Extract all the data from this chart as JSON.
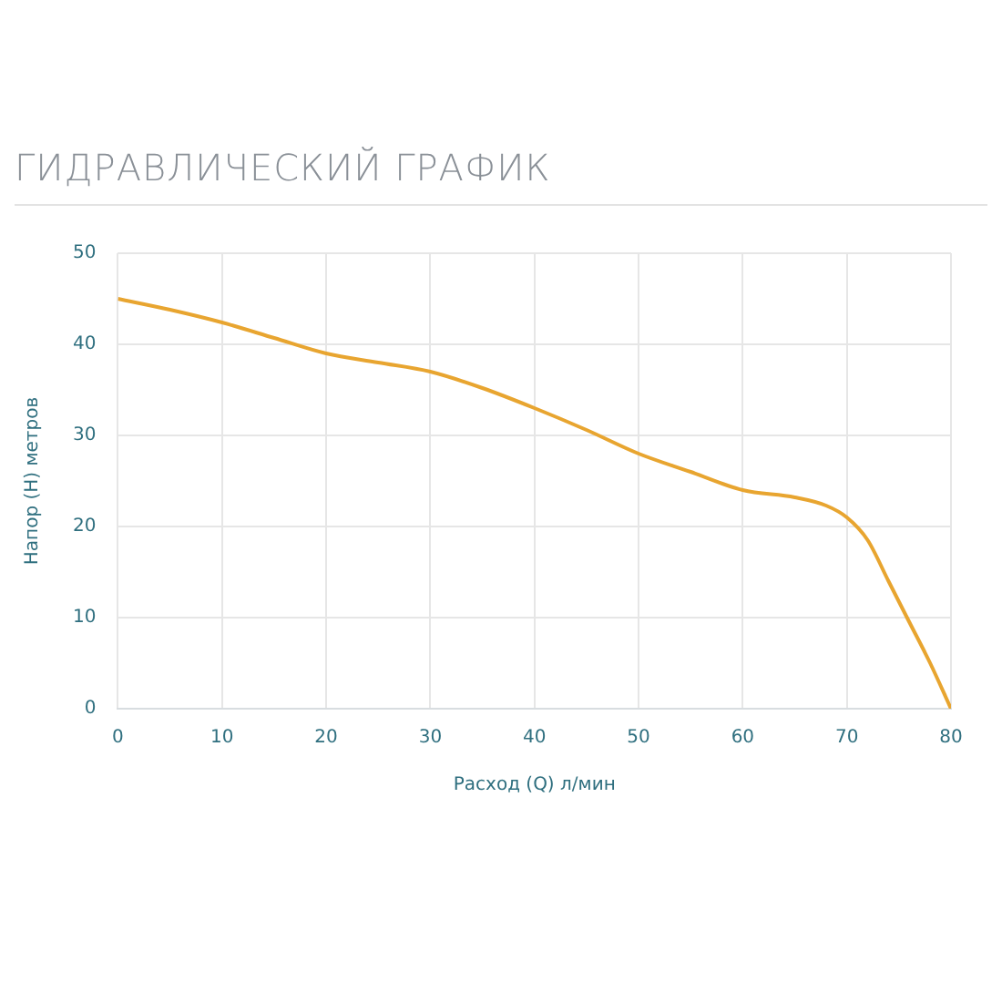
{
  "chart_data": {
    "type": "line",
    "title": "ГИДРАВЛИЧЕСКИЙ ГРАФИК",
    "xlabel": "Расход (Q) л/мин",
    "ylabel": "Напор (Н) метров",
    "x": [
      0,
      5,
      10,
      15,
      20,
      25,
      30,
      35,
      40,
      45,
      50,
      55,
      60,
      65,
      68,
      70,
      72,
      74,
      76,
      78,
      80
    ],
    "series": [
      {
        "color": "#e8a530",
        "values": [
          45,
          43.8,
          42.4,
          40.7,
          39,
          38,
          37,
          35.2,
          33,
          30.6,
          28,
          26,
          24,
          23.2,
          22.3,
          21,
          18.5,
          14,
          9.5,
          5,
          0
        ]
      }
    ],
    "xlim": [
      0,
      80
    ],
    "xticks": [
      0,
      10,
      20,
      30,
      40,
      50,
      60,
      70,
      80
    ],
    "ylim": [
      0,
      50
    ],
    "yticks": [
      0,
      10,
      20,
      30,
      40,
      50
    ],
    "grid": true,
    "legend": false,
    "marker": "none",
    "line_style": "solid"
  }
}
